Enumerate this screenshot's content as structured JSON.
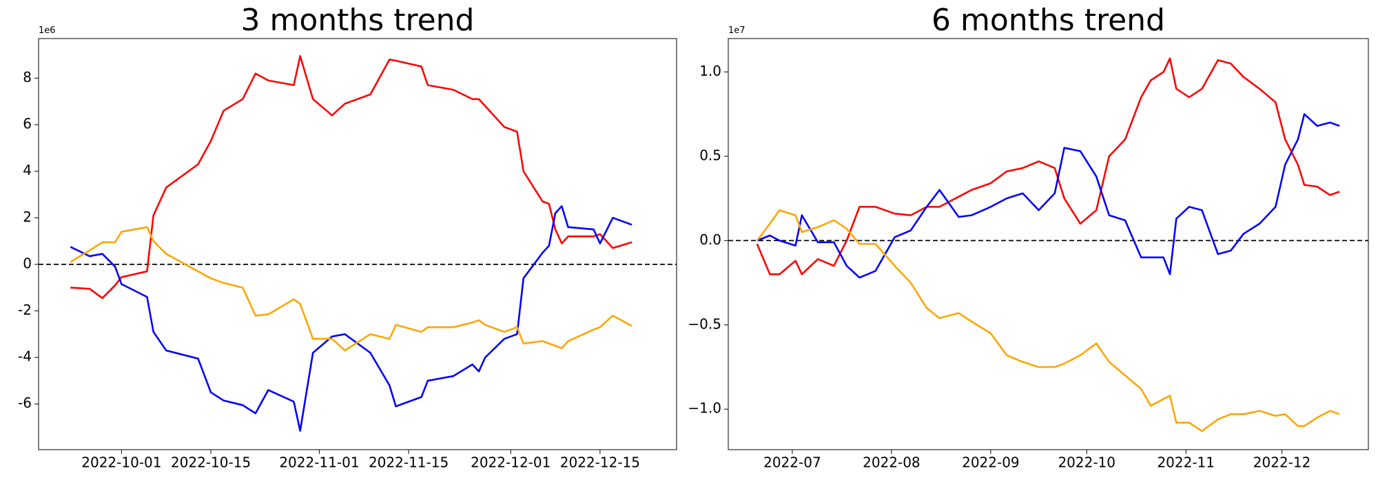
{
  "chart_data": [
    {
      "type": "line",
      "title": "3 months trend",
      "offset_label": "1e6",
      "x": [
        "2022-09-23",
        "2022-09-26",
        "2022-09-28",
        "2022-09-30",
        "2022-10-01",
        "2022-10-05",
        "2022-10-06",
        "2022-10-08",
        "2022-10-13",
        "2022-10-15",
        "2022-10-17",
        "2022-10-20",
        "2022-10-22",
        "2022-10-24",
        "2022-10-28",
        "2022-10-29",
        "2022-10-31",
        "2022-11-03",
        "2022-11-05",
        "2022-11-09",
        "2022-11-12",
        "2022-11-13",
        "2022-11-17",
        "2022-11-18",
        "2022-11-22",
        "2022-11-25",
        "2022-11-26",
        "2022-11-27",
        "2022-11-30",
        "2022-12-02",
        "2022-12-03",
        "2022-12-06",
        "2022-12-07",
        "2022-12-08",
        "2022-12-09",
        "2022-12-10",
        "2022-12-14",
        "2022-12-15",
        "2022-12-17",
        "2022-12-20"
      ],
      "series": [
        {
          "color": "#ff0000",
          "values": [
            -1.0,
            -1.05,
            -1.45,
            -0.9,
            -0.55,
            -0.3,
            2.1,
            3.3,
            4.3,
            5.3,
            6.6,
            7.1,
            8.2,
            7.9,
            7.7,
            8.95,
            7.1,
            6.4,
            6.9,
            7.3,
            8.8,
            8.75,
            8.5,
            7.7,
            7.5,
            7.1,
            7.1,
            6.8,
            5.9,
            5.7,
            4.0,
            2.7,
            2.6,
            1.5,
            0.9,
            1.2,
            1.2,
            1.3,
            0.7,
            0.95
          ]
        },
        {
          "color": "#0000ff",
          "values": [
            0.75,
            0.35,
            0.45,
            -0.1,
            -0.85,
            -1.4,
            -2.9,
            -3.7,
            -4.05,
            -5.5,
            -5.85,
            -6.05,
            -6.4,
            -5.4,
            -5.9,
            -7.15,
            -3.8,
            -3.1,
            -3.0,
            -3.8,
            -5.2,
            -6.1,
            -5.7,
            -5.0,
            -4.8,
            -4.3,
            -4.6,
            -4.0,
            -3.2,
            -3.0,
            -0.6,
            0.5,
            0.8,
            2.2,
            2.5,
            1.6,
            1.5,
            0.9,
            2.0,
            1.7
          ]
        },
        {
          "color": "#ffa500",
          "values": [
            0.1,
            0.6,
            0.95,
            0.95,
            1.4,
            1.6,
            1.0,
            0.45,
            -0.3,
            -0.6,
            -0.8,
            -1.0,
            -2.2,
            -2.15,
            -1.5,
            -1.7,
            -3.2,
            -3.2,
            -3.7,
            -3.0,
            -3.2,
            -2.6,
            -2.9,
            -2.7,
            -2.7,
            -2.5,
            -2.4,
            -2.6,
            -2.9,
            -2.7,
            -3.4,
            -3.3,
            -3.4,
            -3.5,
            -3.6,
            -3.3,
            -2.8,
            -2.7,
            -2.2,
            -2.65
          ]
        }
      ],
      "reference_line": 0,
      "xlim": [
        "2022-09-18",
        "2022-12-27"
      ],
      "xticks": [
        "2022-10-01",
        "2022-10-15",
        "2022-11-01",
        "2022-11-15",
        "2022-12-01",
        "2022-12-15"
      ],
      "ylim": [
        -7.96,
        9.7
      ],
      "yticks": [
        -6,
        -4,
        -2,
        0,
        2,
        4,
        6,
        8
      ]
    },
    {
      "type": "line",
      "title": "6 months trend",
      "offset_label": "1e7",
      "x": [
        "2022-06-20",
        "2022-06-24",
        "2022-06-27",
        "2022-07-02",
        "2022-07-04",
        "2022-07-09",
        "2022-07-14",
        "2022-07-18",
        "2022-07-22",
        "2022-07-27",
        "2022-08-02",
        "2022-08-07",
        "2022-08-12",
        "2022-08-16",
        "2022-08-22",
        "2022-08-26",
        "2022-09-01",
        "2022-09-06",
        "2022-09-11",
        "2022-09-16",
        "2022-09-21",
        "2022-09-24",
        "2022-09-29",
        "2022-10-04",
        "2022-10-08",
        "2022-10-13",
        "2022-10-18",
        "2022-10-21",
        "2022-10-25",
        "2022-10-27",
        "2022-10-29",
        "2022-11-02",
        "2022-11-06",
        "2022-11-11",
        "2022-11-15",
        "2022-11-19",
        "2022-11-24",
        "2022-11-29",
        "2022-12-02",
        "2022-12-06",
        "2022-12-08",
        "2022-12-12",
        "2022-12-16",
        "2022-12-19"
      ],
      "series": [
        {
          "color": "#ff0000",
          "values": [
            -0.02,
            -0.2,
            -0.2,
            -0.12,
            -0.2,
            -0.11,
            -0.15,
            0.0,
            0.2,
            0.2,
            0.16,
            0.15,
            0.2,
            0.2,
            0.26,
            0.3,
            0.34,
            0.41,
            0.43,
            0.47,
            0.43,
            0.25,
            0.1,
            0.18,
            0.5,
            0.6,
            0.85,
            0.95,
            1.0,
            1.08,
            0.9,
            0.85,
            0.9,
            1.07,
            1.05,
            0.97,
            0.9,
            0.82,
            0.6,
            0.45,
            0.33,
            0.32,
            0.27,
            0.29
          ]
        },
        {
          "color": "#0000ff",
          "values": [
            0.0,
            0.03,
            0.0,
            -0.03,
            0.15,
            -0.01,
            -0.01,
            -0.15,
            -0.22,
            -0.18,
            0.02,
            0.06,
            0.2,
            0.3,
            0.14,
            0.15,
            0.2,
            0.25,
            0.28,
            0.18,
            0.28,
            0.55,
            0.53,
            0.38,
            0.15,
            0.12,
            -0.1,
            -0.1,
            -0.1,
            -0.2,
            0.13,
            0.2,
            0.18,
            -0.08,
            -0.06,
            0.04,
            0.1,
            0.2,
            0.45,
            0.6,
            0.75,
            0.68,
            0.7,
            0.68
          ]
        },
        {
          "color": "#ffa500",
          "values": [
            0.0,
            0.1,
            0.18,
            0.15,
            0.05,
            0.08,
            0.12,
            0.07,
            -0.02,
            -0.02,
            -0.15,
            -0.25,
            -0.4,
            -0.46,
            -0.43,
            -0.48,
            -0.55,
            -0.68,
            -0.72,
            -0.75,
            -0.75,
            -0.73,
            -0.68,
            -0.61,
            -0.72,
            -0.8,
            -0.88,
            -0.98,
            -0.94,
            -0.92,
            -1.08,
            -1.08,
            -1.13,
            -1.06,
            -1.03,
            -1.03,
            -1.01,
            -1.04,
            -1.03,
            -1.1,
            -1.1,
            -1.05,
            -1.01,
            -1.03
          ]
        }
      ],
      "reference_line": 0,
      "xlim": [
        "2022-06-11",
        "2022-12-28"
      ],
      "xticks": [
        {
          "value": "2022-07-01",
          "label": "2022-07"
        },
        {
          "value": "2022-08-01",
          "label": "2022-08"
        },
        {
          "value": "2022-09-01",
          "label": "2022-09"
        },
        {
          "value": "2022-10-01",
          "label": "2022-10"
        },
        {
          "value": "2022-11-01",
          "label": "2022-11"
        },
        {
          "value": "2022-12-01",
          "label": "2022-12"
        }
      ],
      "ylim": [
        -1.24,
        1.198
      ],
      "yticks": [
        {
          "value": -1.0,
          "label": "−1.0"
        },
        {
          "value": -0.5,
          "label": "−0.5"
        },
        {
          "value": 0.0,
          "label": "0.0"
        },
        {
          "value": 0.5,
          "label": "0.5"
        },
        {
          "value": 1.0,
          "label": "1.0"
        }
      ]
    }
  ]
}
